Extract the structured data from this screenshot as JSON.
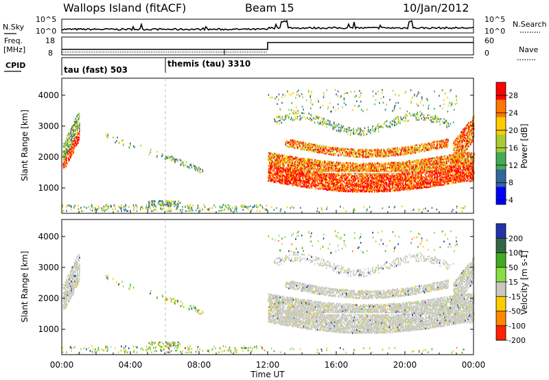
{
  "header": {
    "title": "Wallops Island (fitACF)",
    "beam": "Beam 15",
    "date": "10/Jan/2012"
  },
  "panels": {
    "nsky_label": "N.Sky",
    "nsearch_label": "N.Search",
    "log_tick_hi": "10^5",
    "log_tick_lo": "10^0",
    "freq_label_1": "Freq.",
    "freq_label_2": "[MHz]",
    "freq_ticks": [
      "18",
      "8"
    ],
    "nave_label": "Nave",
    "nave_ticks": [
      "60",
      "0"
    ],
    "cpid_label": "CPID",
    "cpid_entries": [
      {
        "name": "tau (fast) 503",
        "start_hour": 0
      },
      {
        "name": "themis (tau) 3310",
        "start_hour": 6.05
      }
    ]
  },
  "chart_data": [
    {
      "type": "heatmap",
      "name": "power-panel",
      "ylabel": "Slant Range [km]",
      "yticks": [
        1000,
        2000,
        3000,
        4000
      ],
      "ylim": [
        180,
        4550
      ],
      "xlim": [
        0,
        24
      ],
      "colorbar": {
        "label": "Power [dB]",
        "ticks": [
          "28",
          "24",
          "20",
          "16",
          "12",
          "8",
          "4"
        ],
        "colors": [
          "#ff0000",
          "#ff7700",
          "#ffcc00",
          "#aacc33",
          "#44aa55",
          "#336699",
          "#0000ff"
        ]
      }
    },
    {
      "type": "heatmap",
      "name": "velocity-panel",
      "ylabel": "Slant Range [km]",
      "yticks": [
        1000,
        2000,
        3000,
        4000
      ],
      "ylim": [
        180,
        4550
      ],
      "xlim": [
        0,
        24
      ],
      "colorbar": {
        "label": "Velocity [m s-1]",
        "ticks": [
          "200",
          "100",
          "50",
          "15",
          "-15",
          "-50",
          "-100",
          "-200"
        ],
        "colors": [
          "#2233aa",
          "#336644",
          "#44aa22",
          "#88dd44",
          "#c8c8c0",
          "#ffcc00",
          "#ff8800",
          "#ff2200"
        ]
      }
    }
  ],
  "xaxis": {
    "label": "Time UT",
    "ticks": [
      "00:00",
      "04:00",
      "08:00",
      "12:00",
      "16:00",
      "20:00",
      "00:00"
    ]
  }
}
